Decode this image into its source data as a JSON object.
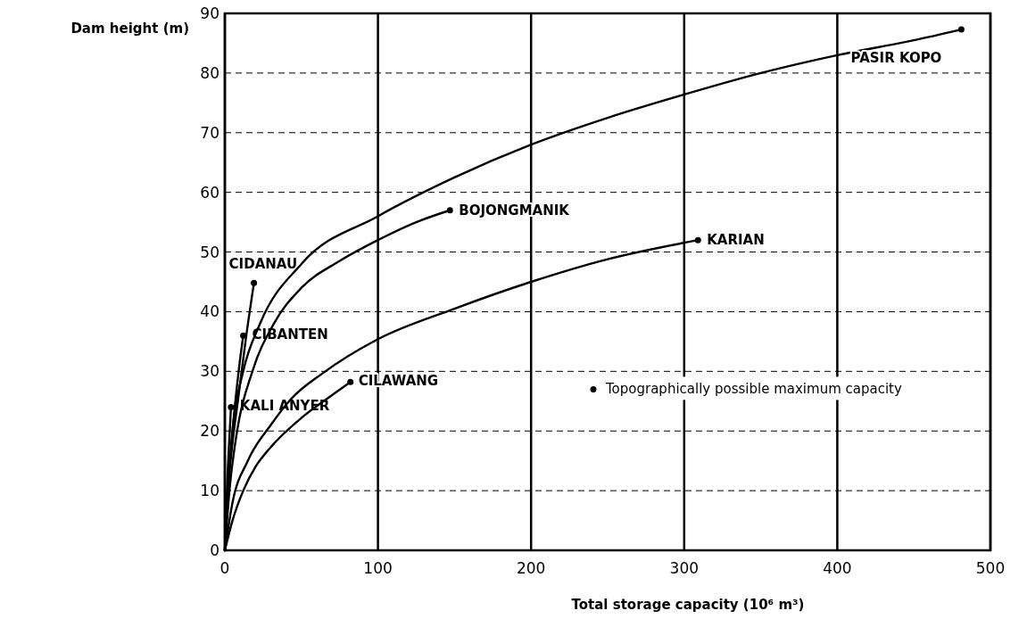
{
  "chart_data": {
    "type": "line",
    "xlabel": "Total storage capacity (10⁶ m³)",
    "ylabel": "Dam height (m)",
    "xlim": [
      0,
      500
    ],
    "xticks": [
      0,
      100,
      200,
      300,
      400,
      500
    ],
    "ylim": [
      0,
      90
    ],
    "yticks": [
      0,
      10,
      20,
      30,
      40,
      50,
      60,
      70,
      80,
      90
    ],
    "grid": true,
    "legend": "right",
    "marker": "none",
    "line_style": "solid",
    "series": [
      {
        "name": "CIDANAU",
        "color": "#000000",
        "x": [
          0,
          2,
          5,
          8.7,
          14,
          19
        ],
        "values": [
          0,
          10,
          18,
          25.4,
          36,
          44.8
        ]
      },
      {
        "name": "CIBANTEN",
        "color": "#000000",
        "x": [
          0,
          2,
          5,
          9,
          12
        ],
        "values": [
          0,
          10,
          20,
          30,
          36
        ]
      },
      {
        "name": "KALI ANYER",
        "color": "#000000",
        "x": [
          0,
          1,
          2,
          3,
          4
        ],
        "values": [
          0,
          8,
          14,
          19,
          24
        ]
      },
      {
        "name": "CILAWANG",
        "color": "#000000",
        "x": [
          0,
          5,
          12,
          20,
          29,
          51,
          70,
          82
        ],
        "values": [
          0,
          5,
          10,
          14,
          17,
          22.4,
          26,
          28.2
        ]
      },
      {
        "name": "BOJONGMANIK",
        "color": "#000000",
        "x": [
          0,
          3,
          8,
          18,
          32,
          50,
          75,
          100,
          125,
          147
        ],
        "values": [
          0,
          10,
          20,
          30,
          38,
          44,
          48.5,
          52,
          55,
          57
        ]
      },
      {
        "name": "KARIAN",
        "color": "#000000",
        "x": [
          0,
          5,
          15,
          30,
          43,
          64,
          100,
          150,
          200,
          250,
          309
        ],
        "values": [
          0,
          8,
          15,
          21,
          25.3,
          29.7,
          35.4,
          40.5,
          45,
          48.8,
          52
        ]
      },
      {
        "name": "PASIR KOPO",
        "color": "#000000",
        "x": [
          0,
          2,
          5,
          12,
          23,
          50,
          100,
          150,
          200,
          250,
          300,
          350,
          400,
          450,
          481
        ],
        "values": [
          0,
          10,
          20,
          30,
          38,
          48,
          56,
          62.5,
          68,
          72.5,
          76.4,
          80,
          83,
          85.5,
          87.3
        ]
      },
      {
        "name": "Topographically possible maximum capacity",
        "type": "scatter",
        "marker": "circle",
        "color": "#000000",
        "x": [
          19,
          12,
          4,
          82,
          147,
          309,
          481
        ],
        "values": [
          44.8,
          36,
          24,
          28.2,
          57,
          52,
          87.3
        ]
      }
    ]
  }
}
